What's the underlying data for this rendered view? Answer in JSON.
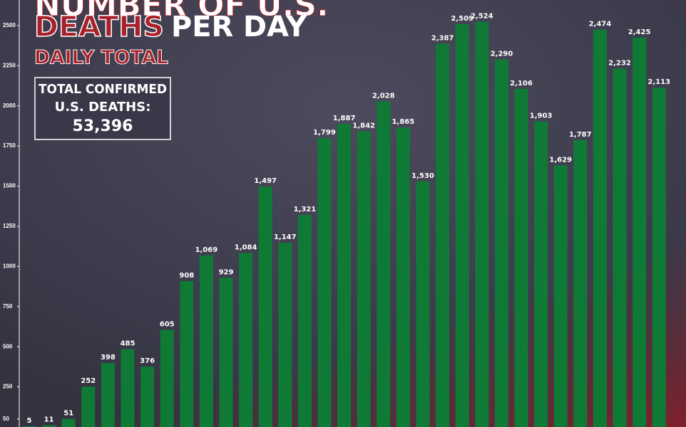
{
  "chart_data": {
    "type": "bar",
    "title_top": "NUMBER OF U.S.",
    "title_highlight": "DEATHS",
    "title_rest": "PER DAY",
    "subtitle": "DAILY TOTAL",
    "total_box": {
      "line1": "TOTAL CONFIRMED",
      "line2": "U.S. DEATHS:",
      "value": "53,396"
    },
    "values": [
      5,
      11,
      51,
      252,
      398,
      485,
      376,
      605,
      908,
      1069,
      929,
      1084,
      1497,
      1147,
      1321,
      1799,
      1887,
      1842,
      2028,
      1865,
      1530,
      2387,
      2509,
      2524,
      2290,
      2106,
      1903,
      1629,
      1787,
      2474,
      2232,
      2425,
      2113
    ],
    "value_labels": [
      "5",
      "11",
      "51",
      "252",
      "398",
      "485",
      "376",
      "605",
      "908",
      "1,069",
      "929",
      "1,084",
      "1,497",
      "1,147",
      "1,321",
      "1,799",
      "1,887",
      "1,842",
      "2,028",
      "1,865",
      "1,530",
      "2,387",
      "2,509",
      "2,524",
      "2,290",
      "2,106",
      "1,903",
      "1,629",
      "1,787",
      "2,474",
      "2,232",
      "2,425",
      "2,113"
    ],
    "color": "#0f7a36",
    "ylim": [
      0,
      2659
    ],
    "yticks": [
      50,
      250,
      500,
      750,
      1000,
      1250,
      1500,
      1750,
      2000,
      2250,
      2500
    ]
  }
}
